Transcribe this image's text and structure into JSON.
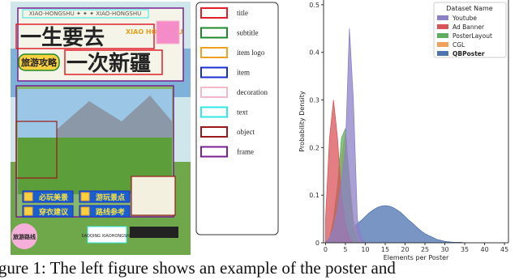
{
  "figure": {
    "poster": {
      "top_text": "XIAO-HONGSHU ✦ ✦ ✦ XIAO-HONGSHU",
      "title_line1": "一生要去",
      "logo_text": "XIAO HONGSHU",
      "subtitle": "旅游攻略",
      "title_line2": "一次新疆",
      "items": [
        "必玩美景",
        "游玩景点",
        "穿衣建议",
        "路线参考"
      ],
      "badge": "旅游路线",
      "footer": "SAOQING XIAOHONGSHU"
    },
    "annotation_legend": [
      {
        "label": "title",
        "color": "#e0202a"
      },
      {
        "label": "subtitle",
        "color": "#1f8a2a"
      },
      {
        "label": "item logo",
        "color": "#f0a020"
      },
      {
        "label": "item",
        "color": "#1a2fd0"
      },
      {
        "label": "decoration",
        "color": "#f4b8c8"
      },
      {
        "label": "text",
        "color": "#30e8e8"
      },
      {
        "label": "object",
        "color": "#9a1a1a"
      },
      {
        "label": "frame",
        "color": "#7a2090"
      }
    ]
  },
  "chart_data": {
    "type": "area",
    "x_label": "Elements per Poster",
    "y_label": "Probability Density",
    "legend_title": "Dataset Name",
    "xlim": [
      -0.5,
      46
    ],
    "ylim": [
      0,
      0.51
    ],
    "xticks": [
      0,
      5,
      10,
      15,
      20,
      25,
      30,
      35,
      40,
      45
    ],
    "yticks": [
      0,
      0.1,
      0.2,
      0.3,
      0.4,
      0.5
    ],
    "legend": "upper right",
    "x": [
      0,
      1,
      2,
      3,
      4,
      5,
      6,
      7,
      8,
      9,
      10,
      11,
      12,
      13,
      14,
      15,
      16,
      17,
      18,
      19,
      20,
      21,
      22,
      23,
      24,
      25,
      26,
      27,
      28,
      29,
      30,
      31,
      32,
      33,
      34,
      35
    ],
    "series": [
      {
        "name": "Youtube",
        "color": "#8c80c8",
        "values": [
          0,
          0.01,
          0.03,
          0.07,
          0.13,
          0.2,
          0.45,
          0.3,
          0.05,
          0.01,
          0,
          0,
          0,
          0,
          0,
          0,
          0,
          0,
          0,
          0,
          0,
          0,
          0,
          0,
          0,
          0,
          0,
          0,
          0,
          0,
          0,
          0,
          0,
          0,
          0,
          0
        ]
      },
      {
        "name": "Ad Banner",
        "color": "#d9545a",
        "values": [
          0.05,
          0.22,
          0.3,
          0.22,
          0.1,
          0.04,
          0.01,
          0,
          0,
          0,
          0,
          0,
          0,
          0,
          0,
          0,
          0,
          0,
          0,
          0,
          0,
          0,
          0,
          0,
          0,
          0,
          0,
          0,
          0,
          0,
          0,
          0,
          0,
          0,
          0,
          0
        ]
      },
      {
        "name": "PosterLayout",
        "color": "#5fae5f",
        "values": [
          0,
          0.01,
          0.05,
          0.12,
          0.22,
          0.24,
          0.12,
          0.03,
          0.005,
          0,
          0,
          0,
          0,
          0,
          0,
          0,
          0,
          0,
          0,
          0,
          0,
          0,
          0,
          0,
          0,
          0,
          0,
          0,
          0,
          0,
          0,
          0,
          0,
          0,
          0,
          0
        ]
      },
      {
        "name": "CGL",
        "color": "#f0a05a",
        "values": [
          0,
          0.01,
          0.04,
          0.1,
          0.18,
          0.23,
          0.14,
          0.05,
          0.01,
          0,
          0,
          0,
          0,
          0,
          0,
          0,
          0,
          0,
          0,
          0,
          0,
          0,
          0,
          0,
          0,
          0,
          0,
          0,
          0,
          0,
          0,
          0,
          0,
          0,
          0,
          0
        ]
      },
      {
        "name": "QBPoster",
        "color": "#4c72b0",
        "values": [
          0.003,
          0.005,
          0.007,
          0.011,
          0.015,
          0.019,
          0.025,
          0.032,
          0.04,
          0.047,
          0.055,
          0.063,
          0.069,
          0.074,
          0.077,
          0.078,
          0.077,
          0.074,
          0.069,
          0.063,
          0.055,
          0.047,
          0.04,
          0.032,
          0.025,
          0.019,
          0.015,
          0.011,
          0.007,
          0.005,
          0.003,
          0.002,
          0.001,
          0.001,
          0.001,
          0
        ]
      }
    ]
  },
  "caption": "igure 1: The left figure shows an example of the poster and"
}
